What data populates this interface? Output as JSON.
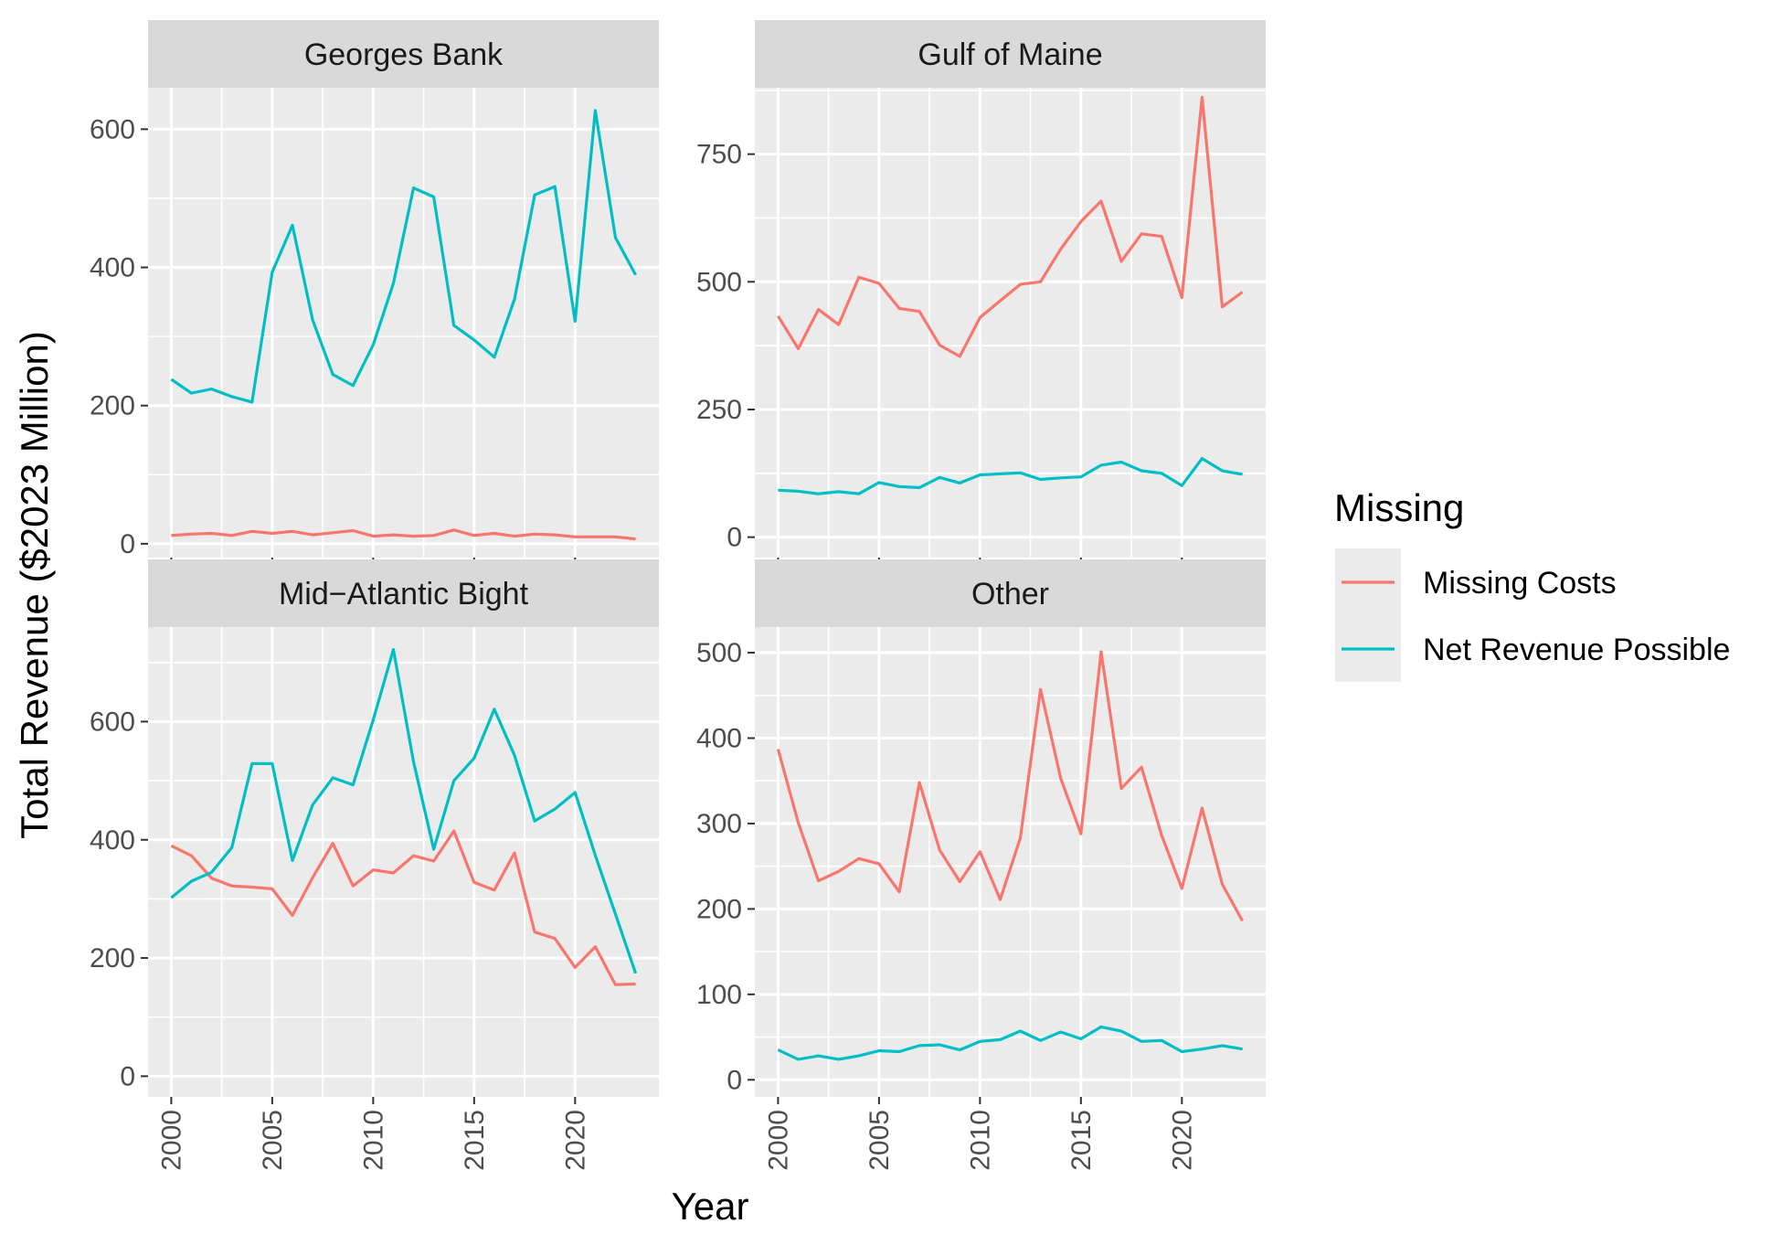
{
  "chart_data": {
    "type": "line",
    "xlabel": "Year",
    "ylabel": "Total Revenue ($2023 Million)",
    "x": [
      2000,
      2001,
      2002,
      2003,
      2004,
      2005,
      2006,
      2007,
      2008,
      2009,
      2010,
      2011,
      2012,
      2013,
      2014,
      2015,
      2016,
      2017,
      2018,
      2019,
      2020,
      2021,
      2022,
      2023
    ],
    "xticks": [
      "2000",
      "2005",
      "2010",
      "2015",
      "2020"
    ],
    "legend": {
      "title": "Missing",
      "placement": "right",
      "entries": [
        {
          "name": "Missing Costs",
          "color": "#F8766D"
        },
        {
          "name": "Net Revenue Possible",
          "color": "#00BFC4"
        }
      ]
    },
    "panels": [
      {
        "title": "Georges Bank",
        "ylim": [
          -20,
          660
        ],
        "yticks": [
          0,
          200,
          400,
          600
        ],
        "series": [
          {
            "name": "Missing Costs",
            "values": [
              12,
              14,
              15,
              12,
              18,
              15,
              18,
              13,
              16,
              19,
              11,
              13,
              11,
              12,
              20,
              12,
              15,
              11,
              14,
              13,
              10,
              10,
              10,
              7
            ]
          },
          {
            "name": "Net Revenue Possible",
            "values": [
              238,
              218,
              224,
              213,
              205,
              393,
              461,
              324,
              245,
              229,
              288,
              377,
              515,
              502,
              316,
              295,
              270,
              354,
              505,
              517,
              322,
              627,
              443,
              389
            ]
          }
        ]
      },
      {
        "title": "Gulf of Maine",
        "ylim": [
          -40,
          880
        ],
        "yticks": [
          0,
          250,
          500,
          750
        ],
        "series": [
          {
            "name": "Missing Costs",
            "values": [
              433,
              369,
              446,
              416,
              509,
              497,
              448,
              442,
              376,
              354,
              430,
              463,
              495,
              500,
              564,
              618,
              658,
              540,
              594,
              589,
              469,
              861,
              451,
              480
            ]
          },
          {
            "name": "Net Revenue Possible",
            "values": [
              92,
              90,
              85,
              89,
              85,
              107,
              99,
              97,
              117,
              106,
              122,
              124,
              126,
              113,
              116,
              118,
              141,
              147,
              130,
              125,
              101,
              154,
              130,
              123
            ]
          }
        ]
      },
      {
        "title": "Mid−Atlantic Bight",
        "ylim": [
          -35,
          760
        ],
        "yticks": [
          0,
          200,
          400,
          600
        ],
        "series": [
          {
            "name": "Missing Costs",
            "values": [
              390,
              373,
              335,
              322,
              320,
              317,
              272,
              336,
              394,
              322,
              349,
              344,
              373,
              364,
              415,
              328,
              315,
              378,
              244,
              233,
              184,
              219,
              155,
              156
            ]
          },
          {
            "name": "Net Revenue Possible",
            "values": [
              302,
              330,
              345,
              387,
              529,
              529,
              365,
              459,
              505,
              493,
              603,
              722,
              532,
              384,
              500,
              538,
              621,
              543,
              432,
              452,
              480,
              374,
              274,
              174
            ]
          }
        ]
      },
      {
        "title": "Other",
        "ylim": [
          -20,
          530
        ],
        "yticks": [
          0,
          100,
          200,
          300,
          400,
          500
        ],
        "series": [
          {
            "name": "Missing Costs",
            "values": [
              387,
              301,
              233,
              244,
              259,
              253,
              220,
              348,
              269,
              232,
              267,
              211,
              283,
              457,
              353,
              288,
              501,
              341,
              366,
              286,
              224,
              318,
              229,
              186
            ]
          },
          {
            "name": "Net Revenue Possible",
            "values": [
              35,
              24,
              28,
              24,
              28,
              34,
              33,
              40,
              41,
              35,
              45,
              47,
              57,
              46,
              56,
              48,
              62,
              57,
              45,
              46,
              33,
              36,
              40,
              36
            ]
          }
        ]
      }
    ]
  }
}
